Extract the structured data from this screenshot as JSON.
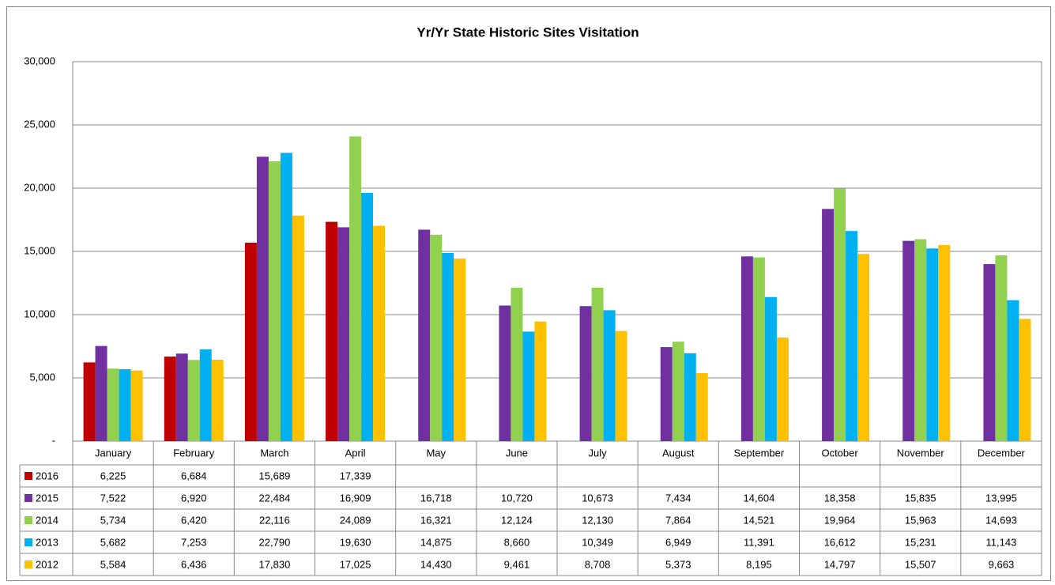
{
  "chart_data": {
    "type": "bar",
    "title": "Yr/Yr State Historic Sites Visitation",
    "categories": [
      "January",
      "February",
      "March",
      "April",
      "May",
      "June",
      "July",
      "August",
      "September",
      "October",
      "November",
      "December"
    ],
    "ylim": [
      0,
      30000
    ],
    "yticks": [
      {
        "value": 0,
        "label": "-"
      },
      {
        "value": 5000,
        "label": "5,000"
      },
      {
        "value": 10000,
        "label": "10,000"
      },
      {
        "value": 15000,
        "label": "15,000"
      },
      {
        "value": 20000,
        "label": "20,000"
      },
      {
        "value": 25000,
        "label": "25,000"
      },
      {
        "value": 30000,
        "label": "30,000"
      }
    ],
    "grid": true,
    "series": [
      {
        "name": "2016",
        "color": "#c00000",
        "values": [
          6225,
          6684,
          15689,
          17339,
          null,
          null,
          null,
          null,
          null,
          null,
          null,
          null
        ],
        "value_labels": [
          "6,225",
          "6,684",
          "15,689",
          "17,339",
          null,
          null,
          null,
          null,
          null,
          null,
          null,
          null
        ]
      },
      {
        "name": "2015",
        "color": "#7030a0",
        "values": [
          7522,
          6920,
          22484,
          16909,
          16718,
          10720,
          10673,
          7434,
          14604,
          18358,
          15835,
          13995
        ],
        "value_labels": [
          "7,522",
          "6,920",
          "22,484",
          "16,909",
          "16,718",
          "10,720",
          "10,673",
          "7,434",
          "14,604",
          "18,358",
          "15,835",
          "13,995"
        ]
      },
      {
        "name": "2014",
        "color": "#92d050",
        "values": [
          5734,
          6420,
          22116,
          24089,
          16321,
          12124,
          12130,
          7864,
          14521,
          19964,
          15963,
          14693
        ],
        "value_labels": [
          "5,734",
          "6,420",
          "22,116",
          "24,089",
          "16,321",
          "12,124",
          "12,130",
          "7,864",
          "14,521",
          "19,964",
          "15,963",
          "14,693"
        ]
      },
      {
        "name": "2013",
        "color": "#00b0f0",
        "values": [
          5682,
          7253,
          22790,
          19630,
          14875,
          8660,
          10349,
          6949,
          11391,
          16612,
          15231,
          11143
        ],
        "value_labels": [
          "5,682",
          "7,253",
          "22,790",
          "19,630",
          "14,875",
          "8,660",
          "10,349",
          "6,949",
          "11,391",
          "16,612",
          "15,231",
          "11,143"
        ]
      },
      {
        "name": "2012",
        "color": "#ffc000",
        "values": [
          5584,
          6436,
          17830,
          17025,
          14430,
          9461,
          8708,
          5373,
          8195,
          14797,
          15507,
          9663
        ],
        "value_labels": [
          "5,584",
          "6,436",
          "17,830",
          "17,025",
          "14,430",
          "9,461",
          "8,708",
          "5,373",
          "8,195",
          "14,797",
          "15,507",
          "9,663"
        ]
      }
    ]
  }
}
